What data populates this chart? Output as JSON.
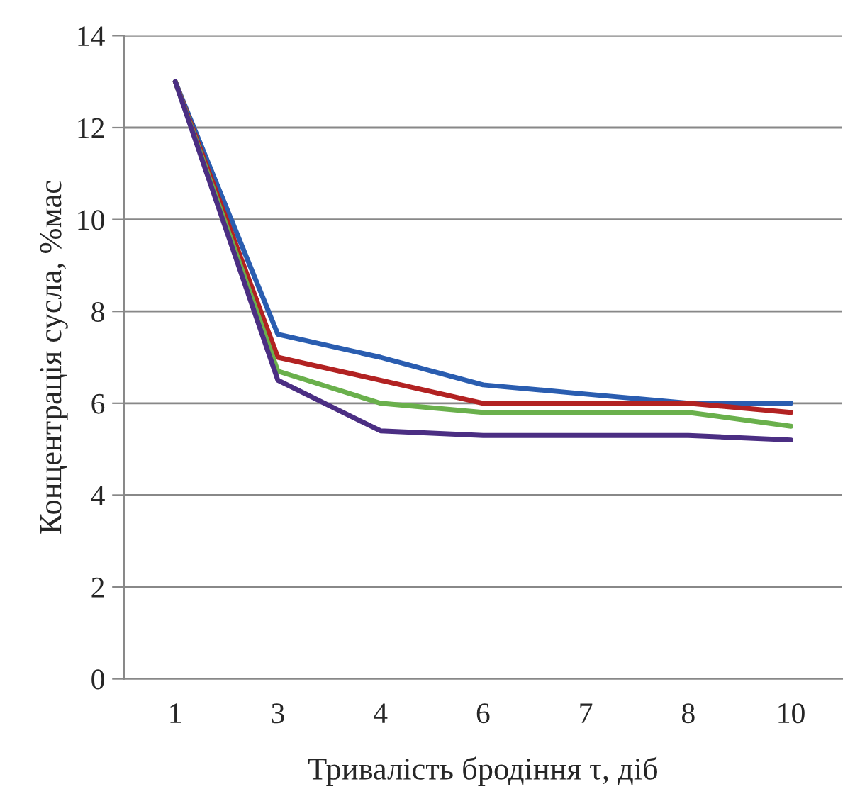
{
  "chart_data": {
    "type": "line",
    "xlabel": "Тривалість бродіння τ, діб",
    "ylabel": "Концентрація сусла, %мас",
    "categories": [
      "1",
      "3",
      "4",
      "6",
      "7",
      "8",
      "10"
    ],
    "series": [
      {
        "color": "#2a5db0",
        "values": [
          13,
          7.5,
          7.0,
          6.4,
          6.2,
          6.0,
          6.0
        ]
      },
      {
        "color": "#b22222",
        "values": [
          13,
          7.0,
          6.5,
          6.0,
          6.0,
          6.0,
          5.8
        ]
      },
      {
        "color": "#6ab04c",
        "values": [
          13,
          6.7,
          6.0,
          5.8,
          5.8,
          5.8,
          5.5
        ]
      },
      {
        "color": "#4b2e83",
        "values": [
          13,
          6.5,
          5.4,
          5.3,
          5.3,
          5.3,
          5.2
        ]
      }
    ],
    "ylim": [
      0,
      14
    ],
    "yticks": [
      0,
      2,
      4,
      6,
      8,
      10,
      12,
      14
    ],
    "grid": "y",
    "marker": "none",
    "line_style": "solid"
  }
}
